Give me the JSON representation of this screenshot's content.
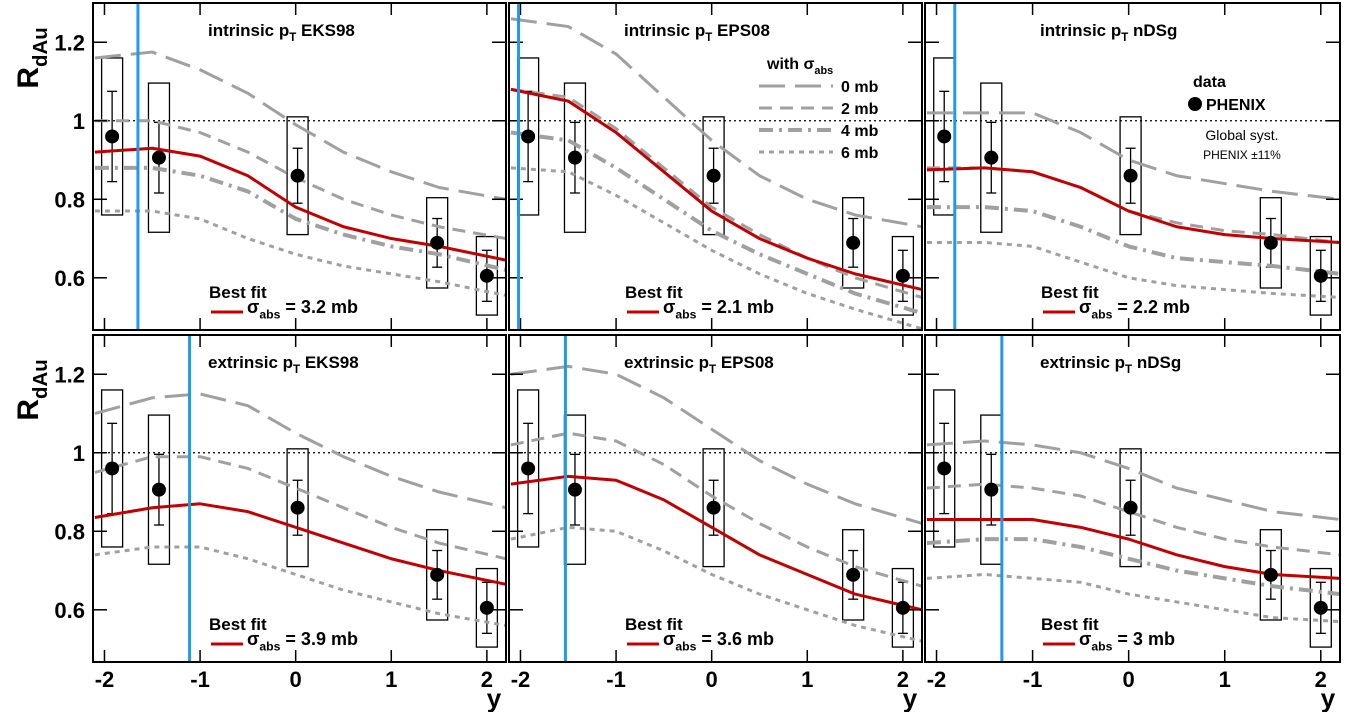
{
  "chart_data": [
    {
      "type": "line",
      "title": [
        "intrinsic p",
        "T",
        " EKS98"
      ],
      "ylabel": [
        "R",
        "dAu"
      ],
      "xlim": [
        -2.12,
        2.2
      ],
      "ylim": [
        0.467,
        1.3
      ],
      "xticks": [
        -2,
        -1,
        0,
        1,
        2
      ],
      "yticks": [
        0.6,
        0.8,
        1,
        1.2
      ],
      "refline": 1,
      "marker_x": -1.65,
      "marker_color": "#1e9be6",
      "x": [
        -2.1,
        -1.5,
        -1,
        -0.5,
        0,
        0.5,
        1,
        1.5,
        2.2
      ],
      "series": [
        {
          "color": "#a0a0a0",
          "dash": "long-dash",
          "values": [
            1.16,
            1.175,
            1.13,
            1.07,
            0.99,
            0.92,
            0.87,
            0.83,
            0.8
          ]
        },
        {
          "color": "#a0a0a0",
          "dash": "dash",
          "values": [
            1.0,
            1.0,
            0.97,
            0.92,
            0.855,
            0.8,
            0.76,
            0.73,
            0.7
          ]
        },
        {
          "color": "#a0a0a0",
          "dash": "dash-dot",
          "values": [
            0.88,
            0.88,
            0.86,
            0.82,
            0.75,
            0.71,
            0.68,
            0.66,
            0.62
          ]
        },
        {
          "color": "#a0a0a0",
          "dash": "dot",
          "values": [
            0.77,
            0.77,
            0.75,
            0.7,
            0.66,
            0.63,
            0.61,
            0.59,
            0.555
          ]
        },
        {
          "color": "#c00000",
          "dash": "solid",
          "name": [
            "σ",
            "abs",
            " = 3.2 mb"
          ],
          "values": [
            0.92,
            0.93,
            0.91,
            0.86,
            0.78,
            0.73,
            0.7,
            0.68,
            0.645
          ]
        }
      ],
      "fit_title": "Best fit",
      "data": {
        "x": [
          -1.92,
          -1.43,
          0.02,
          1.48,
          2.0
        ],
        "values": [
          0.96,
          0.906,
          0.86,
          0.689,
          0.605
        ],
        "stat_err": [
          0.115,
          0.09,
          0.07,
          0.062,
          0.065
        ],
        "syst_err": [
          0.2,
          0.19,
          0.15,
          0.115,
          0.1
        ]
      }
    },
    {
      "type": "line",
      "title": [
        "intrinsic p",
        "T",
        " EPS08"
      ],
      "xlim": [
        -2.12,
        2.2
      ],
      "ylim": [
        0.467,
        1.3
      ],
      "xticks": [
        -2,
        -1,
        0,
        1,
        2
      ],
      "yticks": [
        0.6,
        0.8,
        1,
        1.2
      ],
      "refline": 1,
      "marker_x": -2.02,
      "marker_color": "#1e9be6",
      "legend_title": [
        "with σ",
        "abs"
      ],
      "x": [
        -2.1,
        -1.5,
        -1,
        -0.5,
        0,
        0.5,
        1,
        1.5,
        2.2
      ],
      "series": [
        {
          "name": "0 mb",
          "color": "#a0a0a0",
          "dash": "long-dash",
          "values": [
            1.26,
            1.24,
            1.17,
            1.06,
            0.95,
            0.86,
            0.8,
            0.76,
            0.73
          ]
        },
        {
          "name": "2 mb",
          "color": "#a0a0a0",
          "dash": "dash",
          "values": [
            1.08,
            1.06,
            0.98,
            0.88,
            0.78,
            0.71,
            0.65,
            0.6,
            0.55
          ]
        },
        {
          "name": "4 mb",
          "color": "#a0a0a0",
          "dash": "dash-dot",
          "values": [
            0.97,
            0.95,
            0.88,
            0.8,
            0.72,
            0.66,
            0.61,
            0.56,
            0.51
          ]
        },
        {
          "name": "6 mb",
          "color": "#a0a0a0",
          "dash": "dot",
          "values": [
            0.88,
            0.87,
            0.81,
            0.74,
            0.67,
            0.61,
            0.56,
            0.52,
            0.47
          ]
        },
        {
          "color": "#c00000",
          "dash": "solid",
          "name": [
            "σ",
            "abs",
            " = 2.1 mb"
          ],
          "values": [
            1.08,
            1.05,
            0.97,
            0.87,
            0.77,
            0.7,
            0.65,
            0.61,
            0.57
          ]
        }
      ],
      "fit_title": "Best fit",
      "data": {
        "x": [
          -1.92,
          -1.43,
          0.02,
          1.48,
          2.0
        ],
        "values": [
          0.96,
          0.906,
          0.86,
          0.689,
          0.605
        ],
        "stat_err": [
          0.115,
          0.09,
          0.07,
          0.062,
          0.065
        ],
        "syst_err": [
          0.2,
          0.19,
          0.15,
          0.115,
          0.1
        ]
      }
    },
    {
      "type": "line",
      "title": [
        "intrinsic p",
        "T",
        " nDSg"
      ],
      "xlim": [
        -2.12,
        2.2
      ],
      "ylim": [
        0.467,
        1.3
      ],
      "xticks": [
        -2,
        -1,
        0,
        1,
        2
      ],
      "yticks": [
        0.6,
        0.8,
        1,
        1.2
      ],
      "refline": 1,
      "marker_x": -1.81,
      "marker_color": "#1e9be6",
      "data_legend": {
        "title": "data",
        "name": "PHENIX",
        "syst": [
          "Global syst.",
          "PHENIX ±11%"
        ]
      },
      "x": [
        -2.1,
        -1.5,
        -1,
        -0.5,
        0,
        0.5,
        1,
        1.5,
        2.2
      ],
      "series": [
        {
          "color": "#a0a0a0",
          "dash": "long-dash",
          "values": [
            1.02,
            1.02,
            1.02,
            0.97,
            0.9,
            0.86,
            0.84,
            0.82,
            0.8
          ]
        },
        {
          "color": "#a0a0a0",
          "dash": "dash",
          "values": [
            0.88,
            0.88,
            0.87,
            0.83,
            0.77,
            0.74,
            0.72,
            0.71,
            0.69
          ]
        },
        {
          "color": "#a0a0a0",
          "dash": "dash-dot",
          "values": [
            0.78,
            0.78,
            0.77,
            0.73,
            0.68,
            0.65,
            0.64,
            0.63,
            0.61
          ]
        },
        {
          "color": "#a0a0a0",
          "dash": "dot",
          "values": [
            0.69,
            0.69,
            0.68,
            0.64,
            0.6,
            0.58,
            0.57,
            0.56,
            0.55
          ]
        },
        {
          "color": "#c00000",
          "dash": "solid",
          "name": [
            "σ",
            "abs",
            " = 2.2 mb"
          ],
          "values": [
            0.875,
            0.88,
            0.87,
            0.83,
            0.77,
            0.73,
            0.71,
            0.7,
            0.69
          ]
        }
      ],
      "fit_title": "Best fit",
      "data": {
        "x": [
          -1.92,
          -1.43,
          0.02,
          1.48,
          2.0
        ],
        "values": [
          0.96,
          0.906,
          0.86,
          0.689,
          0.605
        ],
        "stat_err": [
          0.115,
          0.09,
          0.07,
          0.062,
          0.065
        ],
        "syst_err": [
          0.2,
          0.19,
          0.15,
          0.115,
          0.1
        ]
      }
    },
    {
      "type": "line",
      "title": [
        "extrinsic p",
        "T",
        " EKS98"
      ],
      "ylabel": [
        "R",
        "dAu"
      ],
      "xlabel": "y",
      "xlim": [
        -2.12,
        2.2
      ],
      "ylim": [
        0.467,
        1.3
      ],
      "xticks": [
        -2,
        -1,
        0,
        1,
        2
      ],
      "yticks": [
        0.6,
        0.8,
        1,
        1.2
      ],
      "refline": 1,
      "marker_x": -1.11,
      "marker_color": "#1e9be6",
      "x": [
        -2.1,
        -1.5,
        -1,
        -0.5,
        0,
        0.5,
        1,
        1.5,
        2.2
      ],
      "series": [
        {
          "color": "#a0a0a0",
          "dash": "long-dash",
          "values": [
            1.1,
            1.14,
            1.15,
            1.12,
            1.05,
            0.99,
            0.94,
            0.9,
            0.86
          ]
        },
        {
          "color": "#a0a0a0",
          "dash": "dash",
          "values": [
            0.95,
            0.99,
            0.99,
            0.96,
            0.91,
            0.86,
            0.81,
            0.77,
            0.73
          ]
        },
        {
          "color": "#a0a0a0",
          "dash": "dot",
          "values": [
            0.74,
            0.76,
            0.76,
            0.73,
            0.69,
            0.65,
            0.62,
            0.59,
            0.56
          ]
        },
        {
          "color": "#c00000",
          "dash": "solid",
          "name": [
            "σ",
            "abs",
            " = 3.9 mb"
          ],
          "values": [
            0.835,
            0.86,
            0.87,
            0.85,
            0.81,
            0.77,
            0.73,
            0.7,
            0.665
          ]
        }
      ],
      "fit_title": "Best fit",
      "data": {
        "x": [
          -1.92,
          -1.43,
          0.02,
          1.48,
          2.0
        ],
        "values": [
          0.96,
          0.906,
          0.86,
          0.689,
          0.605
        ],
        "stat_err": [
          0.115,
          0.09,
          0.07,
          0.062,
          0.065
        ],
        "syst_err": [
          0.2,
          0.19,
          0.15,
          0.115,
          0.1
        ]
      }
    },
    {
      "type": "line",
      "title": [
        "extrinsic p",
        "T",
        " EPS08"
      ],
      "xlabel": "y",
      "xlim": [
        -2.12,
        2.2
      ],
      "ylim": [
        0.467,
        1.3
      ],
      "xticks": [
        -2,
        -1,
        0,
        1,
        2
      ],
      "yticks": [
        0.6,
        0.8,
        1,
        1.2
      ],
      "refline": 1,
      "marker_x": -1.53,
      "marker_color": "#1e9be6",
      "x": [
        -2.1,
        -1.5,
        -1,
        -0.5,
        0,
        0.5,
        1,
        1.5,
        2.2
      ],
      "series": [
        {
          "color": "#a0a0a0",
          "dash": "long-dash",
          "values": [
            1.2,
            1.22,
            1.2,
            1.14,
            1.06,
            0.98,
            0.92,
            0.87,
            0.82
          ]
        },
        {
          "color": "#a0a0a0",
          "dash": "dash",
          "values": [
            1.02,
            1.05,
            1.03,
            0.97,
            0.89,
            0.82,
            0.76,
            0.71,
            0.66
          ]
        },
        {
          "color": "#a0a0a0",
          "dash": "dot",
          "values": [
            0.78,
            0.81,
            0.8,
            0.75,
            0.69,
            0.64,
            0.6,
            0.56,
            0.52
          ]
        },
        {
          "color": "#c00000",
          "dash": "solid",
          "name": [
            "σ",
            "abs",
            " = 3.6 mb"
          ],
          "values": [
            0.92,
            0.94,
            0.93,
            0.88,
            0.81,
            0.74,
            0.69,
            0.64,
            0.6
          ]
        }
      ],
      "fit_title": "Best fit",
      "data": {
        "x": [
          -1.92,
          -1.43,
          0.02,
          1.48,
          2.0
        ],
        "values": [
          0.96,
          0.906,
          0.86,
          0.689,
          0.605
        ],
        "stat_err": [
          0.115,
          0.09,
          0.07,
          0.062,
          0.065
        ],
        "syst_err": [
          0.2,
          0.19,
          0.15,
          0.115,
          0.1
        ]
      }
    },
    {
      "type": "line",
      "title": [
        "extrinsic p",
        "T",
        " nDSg"
      ],
      "xlabel": "y",
      "xlim": [
        -2.12,
        2.2
      ],
      "ylim": [
        0.467,
        1.3
      ],
      "xticks": [
        -2,
        -1,
        0,
        1,
        2
      ],
      "yticks": [
        0.6,
        0.8,
        1,
        1.2
      ],
      "refline": 1,
      "marker_x": -1.32,
      "marker_color": "#1e9be6",
      "x": [
        -2.1,
        -1.5,
        -1,
        -0.5,
        0,
        0.5,
        1,
        1.5,
        2.2
      ],
      "series": [
        {
          "color": "#a0a0a0",
          "dash": "long-dash",
          "values": [
            1.02,
            1.03,
            1.02,
            1.0,
            0.96,
            0.91,
            0.88,
            0.85,
            0.83
          ]
        },
        {
          "color": "#a0a0a0",
          "dash": "dash",
          "values": [
            0.91,
            0.92,
            0.91,
            0.89,
            0.85,
            0.81,
            0.78,
            0.76,
            0.74
          ]
        },
        {
          "color": "#a0a0a0",
          "dash": "dash-dot",
          "values": [
            0.77,
            0.78,
            0.78,
            0.76,
            0.73,
            0.7,
            0.68,
            0.66,
            0.64
          ]
        },
        {
          "color": "#a0a0a0",
          "dash": "dot",
          "values": [
            0.68,
            0.69,
            0.68,
            0.67,
            0.64,
            0.62,
            0.6,
            0.58,
            0.57
          ]
        },
        {
          "color": "#c00000",
          "dash": "solid",
          "name": [
            "σ",
            "abs",
            " = 3 mb"
          ],
          "values": [
            0.83,
            0.83,
            0.83,
            0.81,
            0.78,
            0.74,
            0.71,
            0.69,
            0.68
          ]
        }
      ],
      "fit_title": "Best fit",
      "data": {
        "x": [
          -1.92,
          -1.43,
          0.02,
          1.48,
          2.0
        ],
        "values": [
          0.96,
          0.906,
          0.86,
          0.689,
          0.605
        ],
        "stat_err": [
          0.115,
          0.09,
          0.07,
          0.062,
          0.065
        ],
        "syst_err": [
          0.2,
          0.19,
          0.15,
          0.115,
          0.1
        ]
      }
    }
  ]
}
